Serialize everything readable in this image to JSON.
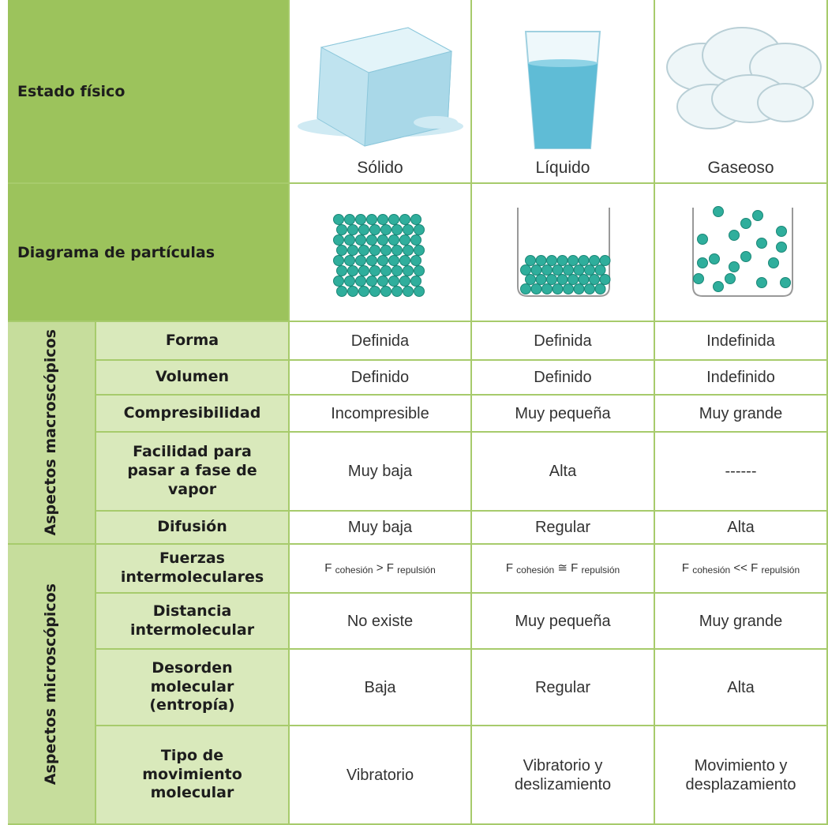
{
  "header": {
    "row_label": "Estado físico",
    "states": [
      "Sólido",
      "Líquido",
      "Gaseoso"
    ]
  },
  "particles_row": {
    "label": "Diagrama de partículas"
  },
  "groups": [
    {
      "label": "Aspectos macroscópicos",
      "rows": [
        {
          "label": "Forma",
          "cells": [
            "Definida",
            "Definida",
            "Indefinida"
          ]
        },
        {
          "label": "Volumen",
          "cells": [
            "Definido",
            "Definido",
            "Indefinido"
          ]
        },
        {
          "label": "Compresibilidad",
          "cells": [
            "Incompresible",
            "Muy pequeña",
            "Muy grande"
          ]
        },
        {
          "label": "Facilidad para pasar a fase de vapor",
          "cells": [
            "Muy baja",
            "Alta",
            "------"
          ]
        },
        {
          "label": "Difusión",
          "cells": [
            "Muy baja",
            "Regular",
            "Alta"
          ]
        }
      ]
    },
    {
      "label": "Aspectos microscópicos",
      "rows": [
        {
          "label": "Fuerzas intermoleculares",
          "cells": [
            {
              "f1": "F",
              "sub1": "cohesión",
              "op": ">",
              "f2": "F",
              "sub2": "repulsión"
            },
            {
              "f1": "F",
              "sub1": "cohesión",
              "op": "≅",
              "f2": "F",
              "sub2": "repulsión"
            },
            {
              "f1": "F",
              "sub1": "cohesión",
              "op": "<<",
              "f2": "F",
              "sub2": "repulsión"
            }
          ]
        },
        {
          "label": "Distancia intermolecular",
          "cells": [
            "No existe",
            "Muy pequeña",
            "Muy grande"
          ]
        },
        {
          "label": "Desorden molecular (entropía)",
          "cells": [
            "Baja",
            "Regular",
            "Alta"
          ]
        },
        {
          "label": "Tipo de movimiento molecular",
          "cells": [
            "Vibratorio",
            "Vibratorio y deslizamiento",
            "Movimiento y desplazamiento"
          ]
        }
      ]
    }
  ]
}
